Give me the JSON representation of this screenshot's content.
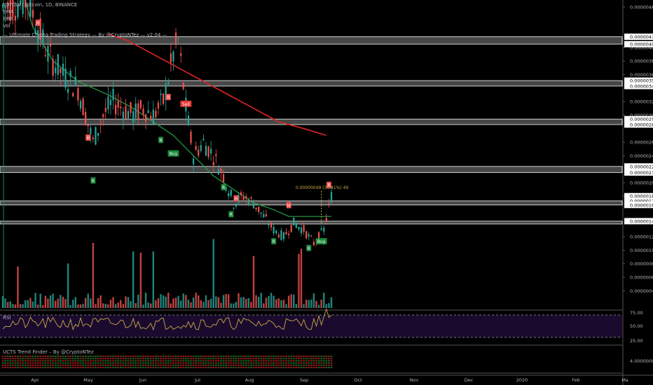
{
  "legend": {
    "symbol": "YOYOW / Bitcoin, 1D, BINANCE",
    "ema1": "EMA",
    "ema2": "EMA",
    "vol": "Vol",
    "strategy": "— Ultimate Crypto Trading Strategy — By @CryptoNTez — v2.04 —"
  },
  "rsi_label": "RSI",
  "trend_label": "UCTS Trend Finder – By @CryptoNTez",
  "measure_label": "0.00000049 (35.41%) 49",
  "chart_data": {
    "type": "candlestick",
    "price_axis": {
      "min": 3e-07,
      "max": 4.6e-06,
      "ticks": [
        "0.00000460",
        "0.00000400",
        "0.00000380",
        "0.00000360",
        "0.00000320",
        "0.00000300",
        "0.00000260",
        "0.00000240",
        "0.00000200",
        "0.00000180",
        "0.00000120",
        "0.00000100",
        "0.00000080",
        "0.00000060",
        "0.00000040"
      ]
    },
    "price_labels": [
      {
        "text": "0.00000416",
        "value": 4.16e-06
      },
      {
        "text": "0.00000405",
        "value": 4.05e-06
      },
      {
        "text": "0.00000351",
        "value": 3.51e-06
      },
      {
        "text": "0.00000343",
        "value": 3.43e-06
      },
      {
        "text": "0.00000294",
        "value": 2.94e-06
      },
      {
        "text": "0.00000286",
        "value": 2.86e-06
      },
      {
        "text": "0.00000224",
        "value": 2.24e-06
      },
      {
        "text": "0.00000215",
        "value": 2.15e-06
      },
      {
        "text": "0.00000180",
        "value": 1.8e-06
      },
      {
        "text": "0.00000173",
        "value": 1.73e-06
      },
      {
        "text": "0.00000167",
        "value": 1.67e-06
      },
      {
        "text": "0.00000143",
        "value": 1.43e-06
      }
    ],
    "zones": [
      [
        4.05e-06,
        4.16e-06
      ],
      [
        3.43e-06,
        3.51e-06
      ],
      [
        2.86e-06,
        2.94e-06
      ],
      [
        2.15e-06,
        2.24e-06
      ],
      [
        1.67e-06,
        1.73e-06
      ],
      [
        1.4e-06,
        1.43e-06
      ]
    ],
    "x_labels": [
      "Apr",
      "May",
      "Jun",
      "Jul",
      "Aug",
      "Sep",
      "Oct",
      "Nov",
      "Dec",
      "2020",
      "Feb",
      "Ma"
    ],
    "ema_fast": [
      [
        8,
        4.8e-06
      ],
      [
        12,
        4.3e-06
      ],
      [
        20,
        3.8e-06
      ],
      [
        30,
        3.5e-06
      ],
      [
        42,
        3.3e-06
      ],
      [
        52,
        3.1e-06
      ],
      [
        60,
        2.9e-06
      ],
      [
        68,
        2.7e-06
      ],
      [
        76,
        2.4e-06
      ],
      [
        84,
        2.1e-06
      ],
      [
        92,
        1.9e-06
      ],
      [
        100,
        1.7e-06
      ],
      [
        108,
        1.6e-06
      ],
      [
        114,
        1.5e-06
      ],
      [
        120,
        1.5e-06
      ],
      [
        126,
        1.5e-06
      ],
      [
        131,
        1.5e-06
      ]
    ],
    "ema_slow": [
      [
        42,
        4.2e-06
      ],
      [
        50,
        4.1e-06
      ],
      [
        60,
        3.9e-06
      ],
      [
        70,
        3.7e-06
      ],
      [
        80,
        3.5e-06
      ],
      [
        90,
        3.3e-06
      ],
      [
        100,
        3.1e-06
      ],
      [
        110,
        2.9e-06
      ],
      [
        120,
        2.8e-06
      ],
      [
        129,
        2.7e-06
      ]
    ],
    "signals": [
      {
        "day": 14,
        "price": 4.3e-06,
        "text": "H",
        "kind": "top"
      },
      {
        "day": 34,
        "price": 2.6e-06,
        "text": "H",
        "kind": "top"
      },
      {
        "day": 66,
        "price": 3.2e-06,
        "text": "R",
        "kind": "top"
      },
      {
        "day": 93,
        "price": 1.7e-06,
        "text": "H",
        "kind": "top"
      },
      {
        "day": 114,
        "price": 1.6e-06,
        "text": "H",
        "kind": "top"
      },
      {
        "day": 130,
        "price": 1.9e-06,
        "text": "R",
        "kind": "top"
      },
      {
        "day": 73,
        "price": 3.1e-06,
        "text": "Sell",
        "kind": "sell"
      },
      {
        "day": 68,
        "price": 2.5e-06,
        "text": "Buy",
        "kind": "buy"
      },
      {
        "day": 127,
        "price": 1.2e-06,
        "text": "Buy",
        "kind": "buy"
      },
      {
        "day": 36,
        "price": 2.1e-06,
        "text": "R",
        "kind": "bot"
      },
      {
        "day": 63,
        "price": 2.7e-06,
        "text": "R",
        "kind": "bot"
      },
      {
        "day": 88,
        "price": 2e-06,
        "text": "R",
        "kind": "bot"
      },
      {
        "day": 91,
        "price": 1.6e-06,
        "text": "R",
        "kind": "bot"
      },
      {
        "day": 108,
        "price": 1.2e-06,
        "text": "R",
        "kind": "bot"
      },
      {
        "day": 122,
        "price": 1.1e-06,
        "text": "R",
        "kind": "bot"
      }
    ],
    "rsi_axis": {
      "ticks": [
        "75.00",
        "50.00",
        "25.00"
      ],
      "overbought": 70,
      "oversold": 30
    },
    "trend_axis": {
      "ticks": [
        "4.00000000"
      ]
    },
    "colors": {
      "up": "#26a69a",
      "down": "#ef5350",
      "ema_fast": "#21a346",
      "ema_slow": "#e12424",
      "rsi": "#c9a848",
      "rsi_bg": "#1a0b2e",
      "zone": "#ffffff"
    }
  }
}
